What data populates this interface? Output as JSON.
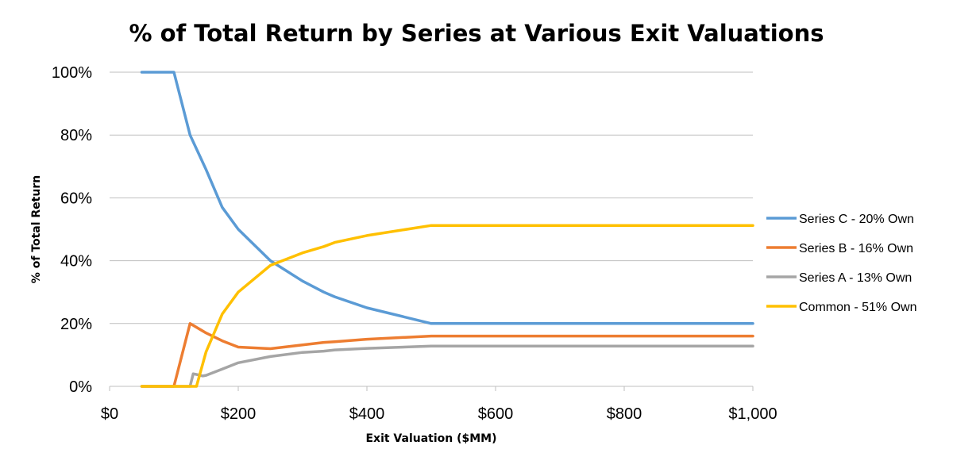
{
  "chart_data": {
    "type": "line",
    "title": "% of Total Return by Series at Various Exit Valuations",
    "xlabel": "Exit Valuation ($MM)",
    "ylabel": "% of Total Return",
    "xlim": [
      0,
      1000
    ],
    "ylim": [
      0,
      100
    ],
    "x_ticks": [
      0,
      200,
      400,
      600,
      800,
      1000
    ],
    "x_tick_labels": [
      "$0",
      "$200",
      "$400",
      "$600",
      "$800",
      "$1,000"
    ],
    "y_ticks": [
      0,
      20,
      40,
      60,
      80,
      100
    ],
    "y_tick_labels": [
      "0%",
      "20%",
      "40%",
      "60%",
      "80%",
      "100%"
    ],
    "grid": "horizontal",
    "legend_position": "right",
    "series": [
      {
        "name": "Series C - 20% Own",
        "color": "#5b9bd5",
        "x": [
          50,
          100,
          125,
          150,
          175,
          200,
          250,
          300,
          333,
          350,
          400,
          500,
          600,
          700,
          800,
          900,
          1000
        ],
        "y": [
          100,
          100,
          80,
          69,
          57,
          50,
          40,
          33.5,
          30,
          28.5,
          25,
          20,
          20,
          20,
          20,
          20,
          20
        ]
      },
      {
        "name": "Series B - 16% Own",
        "color": "#ed7d31",
        "x": [
          50,
          100,
          125,
          150,
          175,
          200,
          250,
          300,
          333,
          350,
          400,
          500,
          600,
          700,
          800,
          900,
          1000
        ],
        "y": [
          0,
          0,
          20,
          17,
          14.5,
          12.5,
          12,
          13.2,
          14,
          14.2,
          15,
          16,
          16,
          16,
          16,
          16,
          16
        ]
      },
      {
        "name": "Series A - 13% Own",
        "color": "#a5a5a5",
        "x": [
          50,
          100,
          125,
          130,
          135,
          145,
          150,
          175,
          200,
          250,
          300,
          333,
          350,
          400,
          500,
          600,
          700,
          800,
          900,
          1000
        ],
        "y": [
          0,
          0,
          0,
          4,
          3.8,
          3.3,
          3.5,
          5.5,
          7.5,
          9.5,
          10.8,
          11.2,
          11.6,
          12.1,
          12.8,
          12.8,
          12.8,
          12.8,
          12.8,
          12.8
        ]
      },
      {
        "name": "Common - 51% Own",
        "color": "#ffc000",
        "x": [
          50,
          100,
          125,
          135,
          150,
          175,
          200,
          250,
          300,
          333,
          350,
          400,
          500,
          600,
          700,
          800,
          900,
          1000
        ],
        "y": [
          0,
          0,
          0,
          0,
          11,
          23,
          30,
          38.5,
          42.5,
          44.5,
          45.8,
          48,
          51.2,
          51.2,
          51.2,
          51.2,
          51.2,
          51.2
        ]
      }
    ]
  }
}
